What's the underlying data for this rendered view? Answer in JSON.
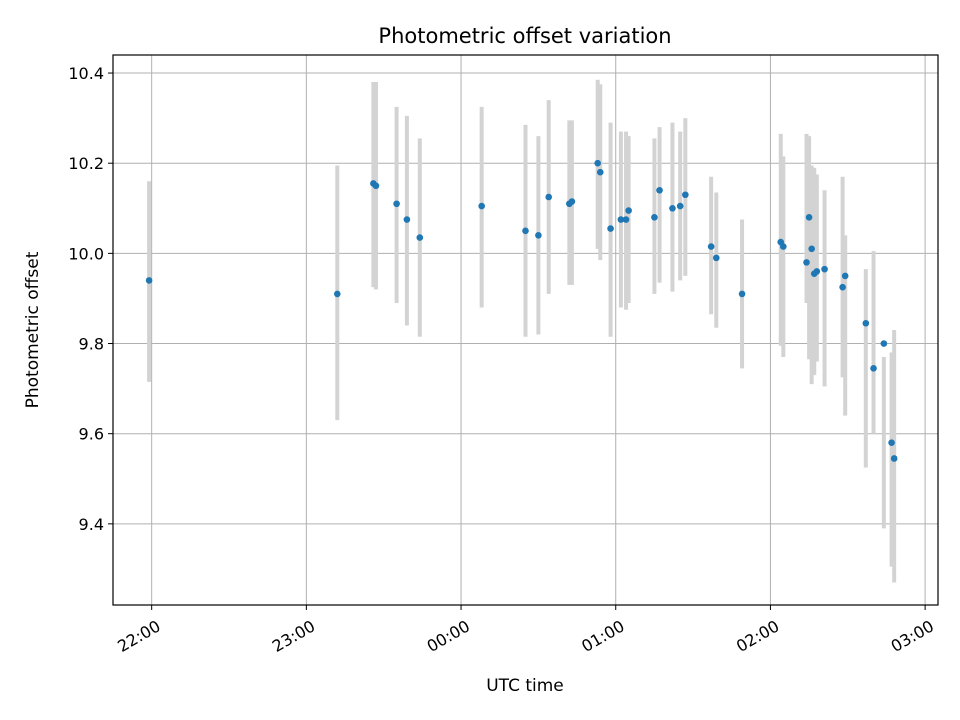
{
  "chart_data": {
    "type": "scatter",
    "title": "Photometric offset variation",
    "xlabel": "UTC time",
    "ylabel": "Photometric offset",
    "grid": true,
    "x_unit": "UTC time",
    "xlim": [
      "21:45",
      "03:05"
    ],
    "ylim": [
      9.22,
      10.44
    ],
    "x_ticks": [
      "22:00",
      "23:00",
      "00:00",
      "01:00",
      "02:00",
      "03:00"
    ],
    "y_ticks": [
      9.4,
      9.6,
      9.8,
      10.0,
      10.2,
      10.4
    ],
    "y_tick_labels": [
      "9.4",
      "9.6",
      "9.8",
      "10.0",
      "10.2",
      "10.4"
    ],
    "colors": {
      "marker": "#1f77b4",
      "errorbar": "#d3d3d3",
      "grid": "#b0b0b0"
    },
    "series": [
      {
        "x": [
          "21:59",
          "23:12",
          "23:26",
          "23:27",
          "23:35",
          "23:39",
          "23:44",
          "00:08",
          "00:25",
          "00:30",
          "00:34",
          "00:42",
          "00:43",
          "00:53",
          "00:54",
          "00:58",
          "01:02",
          "01:04",
          "01:05",
          "01:15",
          "01:17",
          "01:22",
          "01:25",
          "01:27",
          "01:37",
          "01:39",
          "01:49",
          "02:04",
          "02:05",
          "02:14",
          "02:15",
          "02:16",
          "02:17",
          "02:18",
          "02:21",
          "02:28",
          "02:29",
          "02:37",
          "02:40",
          "02:44",
          "02:47",
          "02:48"
        ],
        "y": [
          9.94,
          9.91,
          10.155,
          10.15,
          10.11,
          10.075,
          10.035,
          10.105,
          10.05,
          10.04,
          10.125,
          10.11,
          10.115,
          10.2,
          10.18,
          10.055,
          10.075,
          10.075,
          10.095,
          10.08,
          10.14,
          10.1,
          10.105,
          10.13,
          10.015,
          9.99,
          9.91,
          10.025,
          10.015,
          9.98,
          10.08,
          10.01,
          9.955,
          9.96,
          9.965,
          9.925,
          9.95,
          9.845,
          9.745,
          9.8,
          9.58,
          9.545
        ],
        "y_low": [
          9.715,
          9.63,
          9.925,
          9.92,
          9.89,
          9.84,
          9.815,
          9.88,
          9.815,
          9.82,
          9.91,
          9.93,
          9.93,
          10.01,
          9.985,
          9.815,
          9.88,
          9.875,
          9.89,
          9.91,
          9.935,
          9.915,
          9.94,
          9.95,
          9.865,
          9.835,
          9.745,
          9.795,
          9.77,
          9.89,
          9.765,
          9.71,
          9.73,
          9.76,
          9.705,
          9.725,
          9.64,
          9.525,
          9.6,
          9.39,
          9.305,
          9.27
        ],
        "y_high": [
          10.16,
          10.195,
          10.38,
          10.38,
          10.325,
          10.305,
          10.255,
          10.325,
          10.285,
          10.26,
          10.34,
          10.295,
          10.295,
          10.385,
          10.375,
          10.29,
          10.27,
          10.27,
          10.26,
          10.255,
          10.28,
          10.29,
          10.27,
          10.3,
          10.17,
          10.135,
          10.075,
          10.265,
          10.215,
          10.265,
          10.26,
          10.195,
          10.19,
          10.175,
          10.14,
          10.17,
          10.04,
          9.965,
          10.005,
          9.77,
          9.78,
          9.83
        ]
      }
    ]
  }
}
